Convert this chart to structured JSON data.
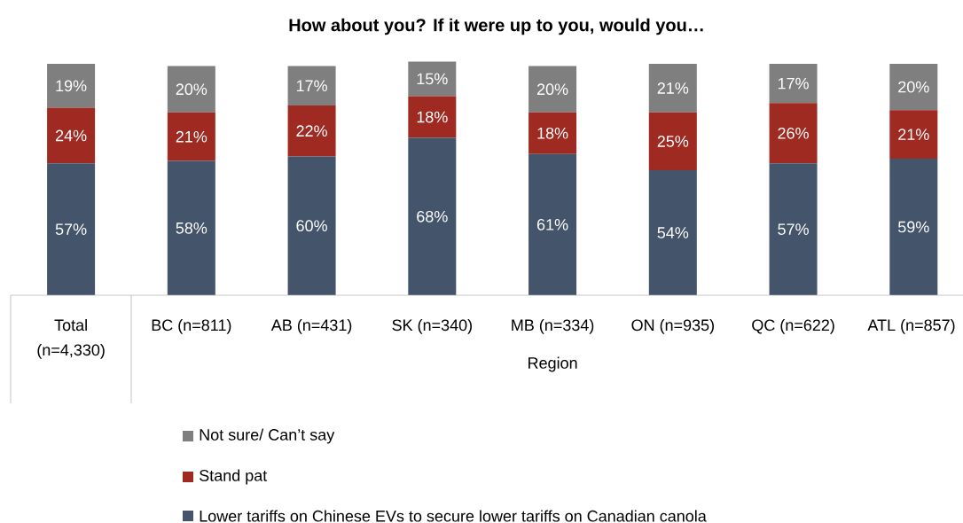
{
  "chart_data": {
    "type": "bar",
    "stacked": true,
    "title": "How about you? If it were up to you, would you…",
    "categories": [
      "Total (n=4,330)",
      "BC (n=811)",
      "AB (n=431)",
      "SK (n=340)",
      "MB (n=334)",
      "ON (n=935)",
      "QC (n=622)",
      "ATL (n=857)"
    ],
    "series": [
      {
        "name": "Lower tariffs on Chinese EVs to secure lower tariffs on Canadian canola",
        "color": "#44546a",
        "values": [
          57,
          58,
          60,
          68,
          61,
          54,
          57,
          59
        ],
        "value_labels": [
          "57%",
          "58%",
          "60%",
          "68%",
          "61%",
          "54%",
          "57%",
          "59%"
        ]
      },
      {
        "name": "Stand pat",
        "color": "#9e2a22",
        "values": [
          24,
          21,
          22,
          18,
          18,
          25,
          26,
          21
        ],
        "value_labels": [
          "24%",
          "21%",
          "22%",
          "18%",
          "18%",
          "25%",
          "26%",
          "21%"
        ]
      },
      {
        "name": "Not sure/ Can’t say",
        "color": "#7f7f7f",
        "values": [
          19,
          20,
          17,
          15,
          20,
          21,
          17,
          20
        ],
        "value_labels": [
          "19%",
          "20%",
          "17%",
          "15%",
          "20%",
          "21%",
          "17%",
          "20%"
        ]
      }
    ],
    "annotations": [
      "Region"
    ],
    "legend": "bottom"
  }
}
